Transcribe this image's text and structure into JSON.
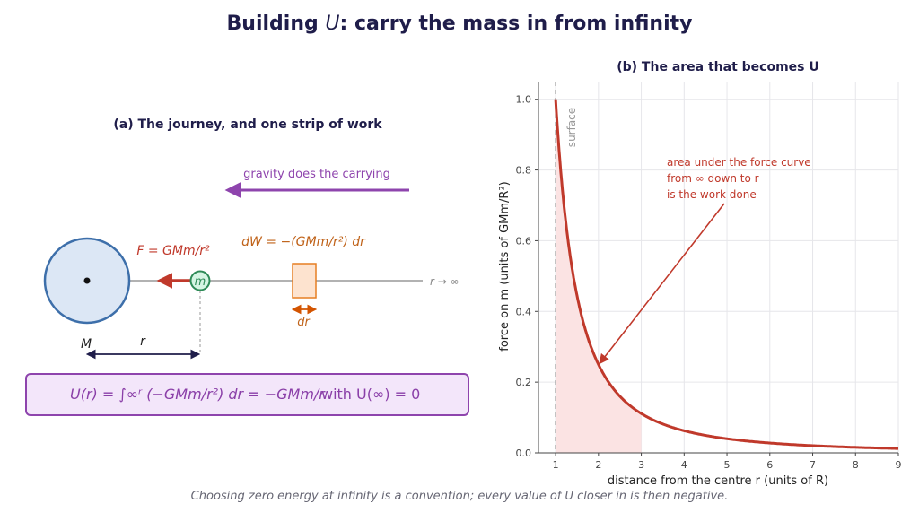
{
  "title": "Building U: carry the mass in from infinity",
  "footer": "Choosing zero energy at infinity is a convention; every value of U closer in is then negative.",
  "panel_a": {
    "title": "(a) The journey, and one strip of work",
    "gravity_label": "gravity does the carrying",
    "force_label": "F = GMm/r²",
    "dw_label": "dW = −(GMm/r²) dr",
    "dr_label": "dr",
    "big_mass_label": "M",
    "small_mass_label": "m",
    "r_label": "r",
    "infinity_label": "r → ∞",
    "formula": "U(r) = ∫∞ʳ (−GMm/r²) dr = −GMm/r",
    "formula_condition": "with  U(∞) = 0",
    "colors": {
      "purple": "#8e44ad",
      "force": "#c0392b",
      "strip": "#e67e22",
      "mass_fill": "#dce7f5",
      "mass_stroke": "#3d6faa",
      "small_fill": "#d5f5e3",
      "small_stroke": "#2e8b57"
    }
  },
  "panel_b": {
    "title": "(b) The area that becomes U",
    "surface_label": "surface",
    "annotation": [
      "area under the force curve",
      "from ∞ down to r",
      "is the work done"
    ],
    "curve_color": "#c0392b",
    "shade_color": "#fbe3e3"
  },
  "chart_data": {
    "type": "area",
    "title": "(b) The area that becomes U",
    "xlabel": "distance from the centre  r   (units of R)",
    "ylabel": "force on m   (units of GMm/R²)",
    "xlim": [
      0.6,
      9
    ],
    "ylim": [
      0,
      1.05
    ],
    "xticks": [
      1,
      2,
      3,
      4,
      5,
      6,
      7,
      8,
      9
    ],
    "yticks": [
      0.0,
      0.2,
      0.4,
      0.6,
      0.8,
      1.0
    ],
    "grid": true,
    "function": "1/r^2",
    "x": [
      1,
      1.25,
      1.5,
      1.75,
      2,
      2.5,
      3,
      3.5,
      4,
      5,
      6,
      7,
      8,
      9
    ],
    "y": [
      1.0,
      0.64,
      0.444,
      0.327,
      0.25,
      0.16,
      0.111,
      0.082,
      0.0625,
      0.04,
      0.028,
      0.02,
      0.016,
      0.012
    ],
    "shaded_range": [
      1,
      3
    ],
    "surface_x": 1,
    "arrow_target": [
      2,
      0.25
    ]
  }
}
